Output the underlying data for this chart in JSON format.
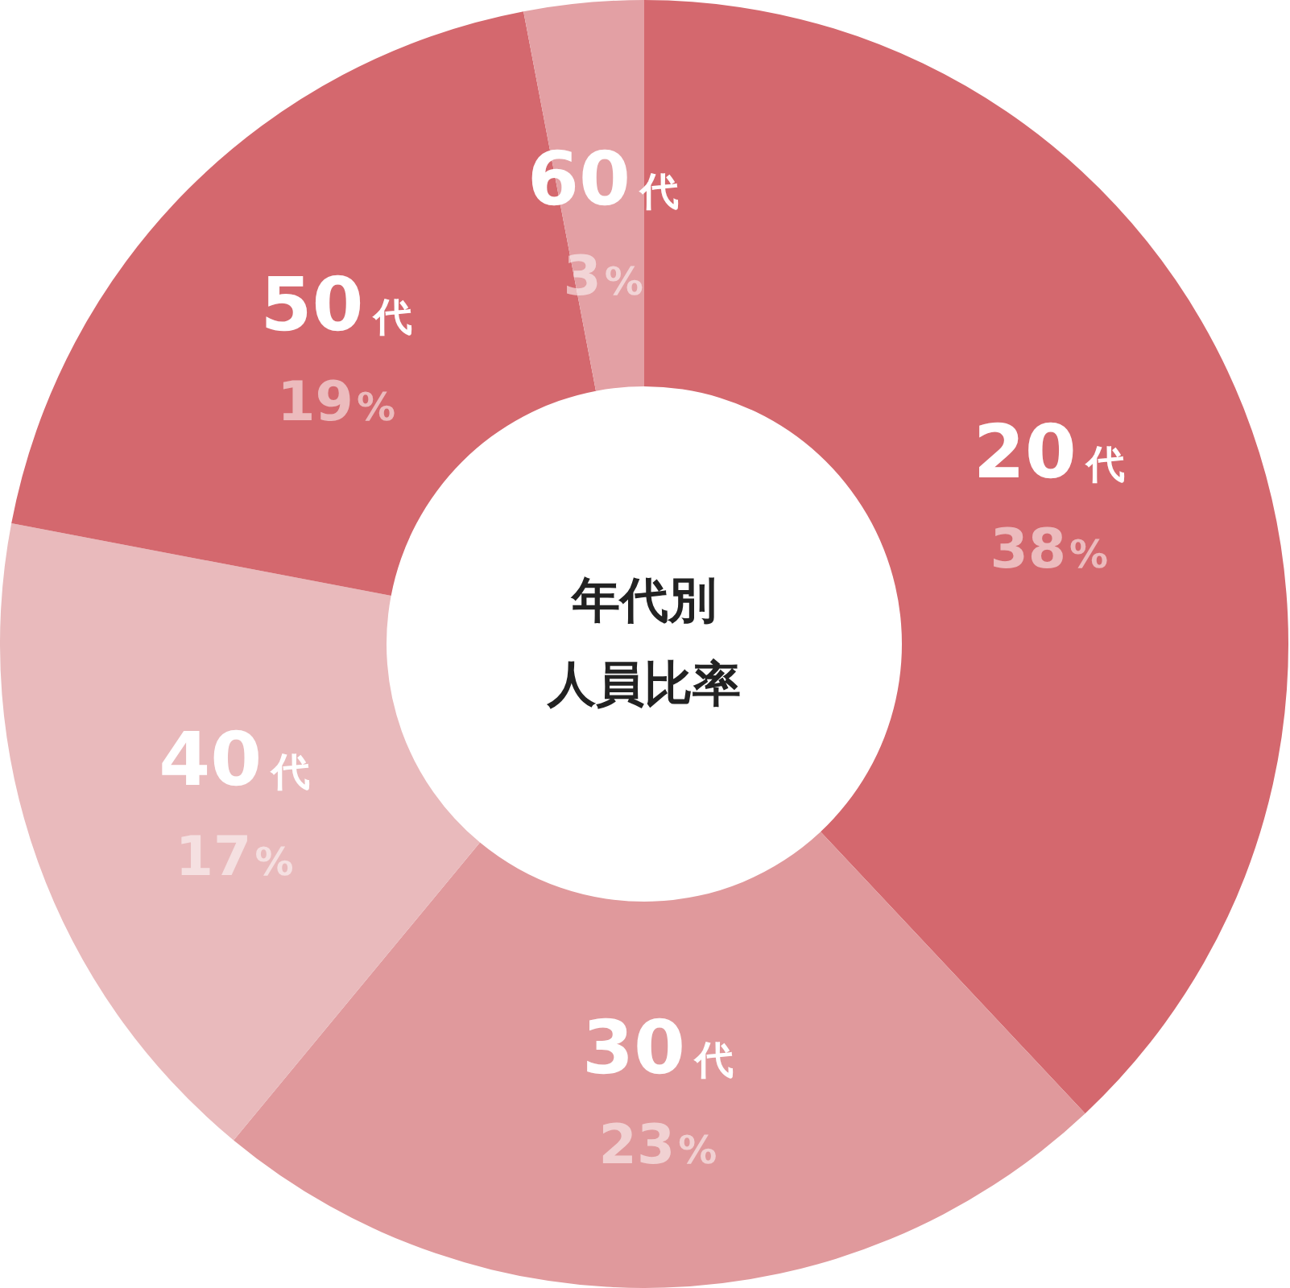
{
  "chart_data": {
    "type": "donut",
    "title": "年代別人員比率",
    "categories": [
      "20代",
      "30代",
      "40代",
      "50代",
      "60代"
    ],
    "values": [
      38,
      23,
      17,
      19,
      3
    ],
    "colors": [
      "#d4686e",
      "#e0999c",
      "#e9babc",
      "#d4686e",
      "#e3a0a4"
    ],
    "value_labels": [
      "38%",
      "23%",
      "17%",
      "19%",
      "3%"
    ]
  }
}
